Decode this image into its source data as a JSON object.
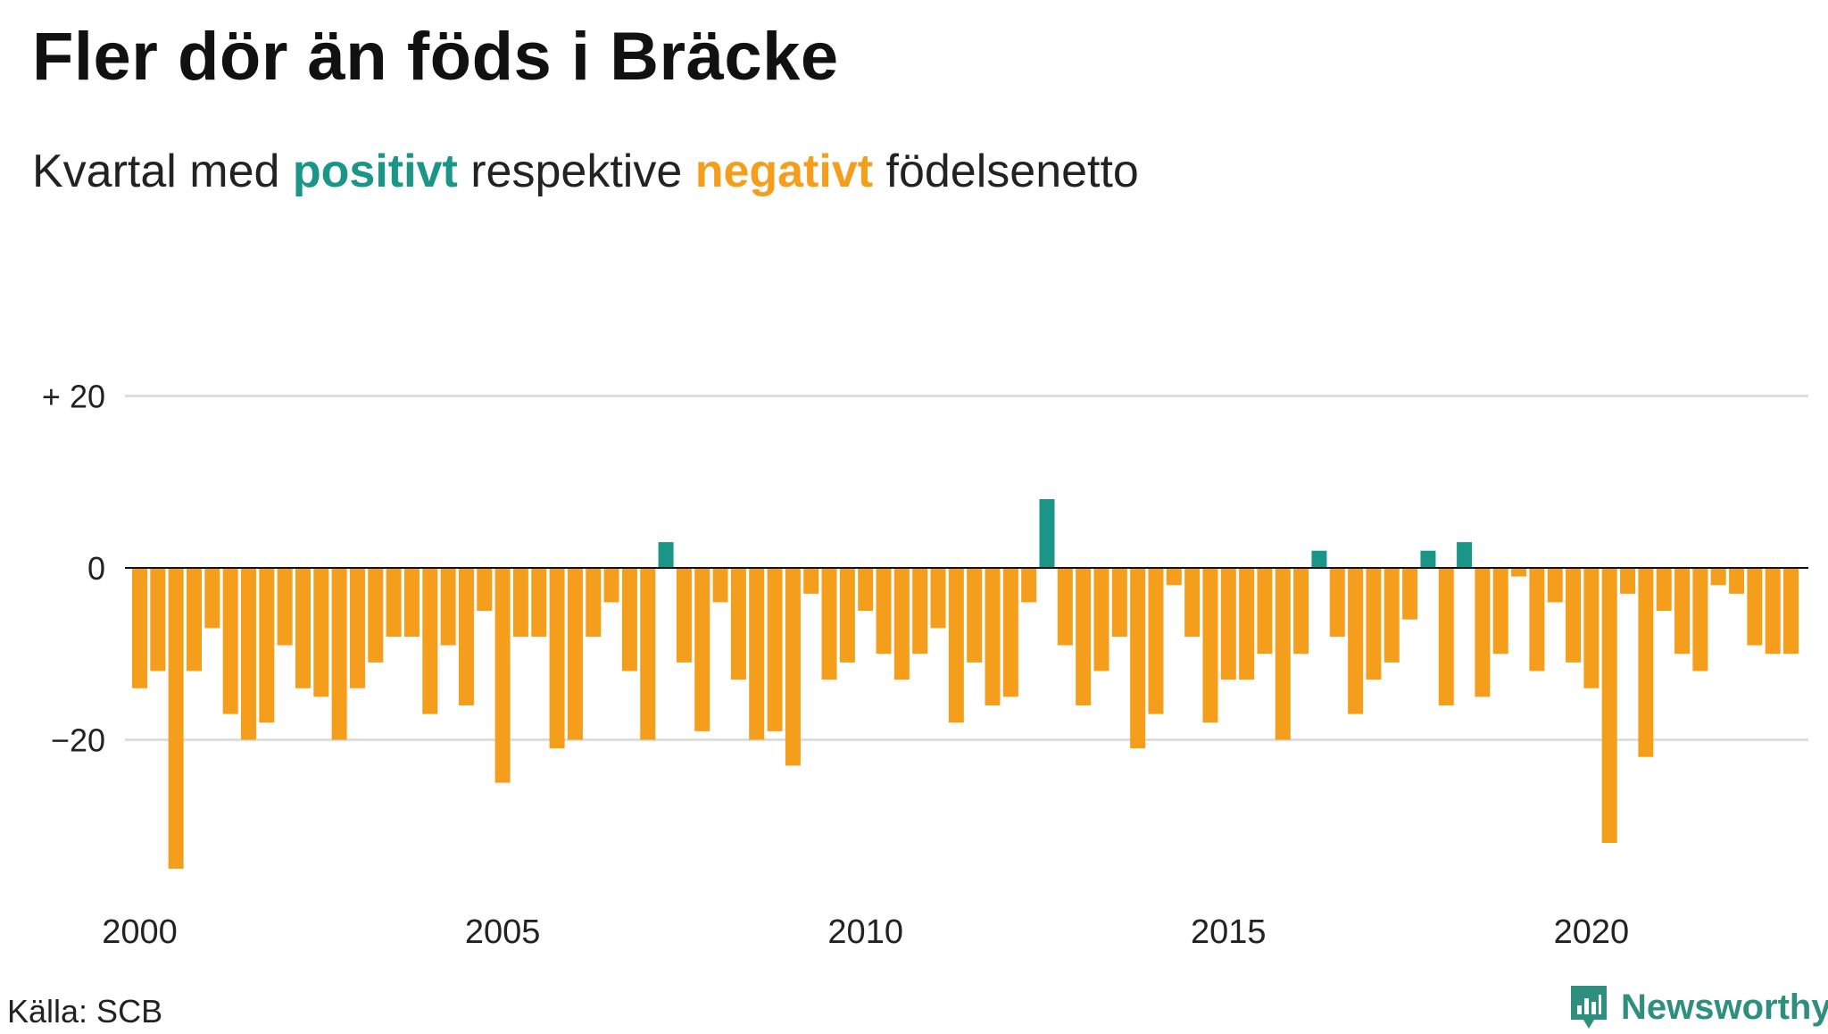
{
  "title": "Fler dör än föds i Bräcke",
  "subtitle": {
    "prefix": "Kvartal med ",
    "positive": "positivt",
    "middle": " respektive ",
    "negative": "negativt",
    "suffix": " födelsenetto"
  },
  "source": "Källa: SCB",
  "brand": "Newsworthy",
  "colors": {
    "positive": "#1a9688",
    "negative": "#f59e1c",
    "brand": "#2e8f7e",
    "grid": "#dddddd",
    "baseline": "#111111"
  },
  "chart_data": {
    "type": "bar",
    "ylim": [
      -36,
      20
    ],
    "y_ticks": [
      {
        "value": 20,
        "label": "+ 20"
      },
      {
        "value": 0,
        "label": "0"
      },
      {
        "value": -20,
        "label": "−20"
      }
    ],
    "x_ticks": [
      {
        "value": 2000,
        "label": "2000"
      },
      {
        "value": 2005,
        "label": "2005"
      },
      {
        "value": 2010,
        "label": "2010"
      },
      {
        "value": 2015,
        "label": "2015"
      },
      {
        "value": 2020,
        "label": "2020"
      }
    ],
    "start_year": 2000,
    "quarters_per_year": 4,
    "grid": true,
    "values": [
      -14,
      -12,
      -35,
      -12,
      -7,
      -17,
      -20,
      -18,
      -9,
      -14,
      -15,
      -20,
      -14,
      -11,
      -8,
      -8,
      -17,
      -9,
      -16,
      -5,
      -25,
      -8,
      -8,
      -21,
      -20,
      -8,
      -4,
      -12,
      -20,
      3,
      -11,
      -19,
      -4,
      -13,
      -20,
      -19,
      -23,
      -3,
      -13,
      -11,
      -5,
      -10,
      -13,
      -10,
      -7,
      -18,
      -11,
      -16,
      -15,
      -4,
      8,
      -9,
      -16,
      -12,
      -8,
      -21,
      -17,
      -2,
      -8,
      -18,
      -13,
      -13,
      -10,
      -20,
      -10,
      2,
      -8,
      -17,
      -13,
      -11,
      -6,
      2,
      -16,
      3,
      -15,
      -10,
      -1,
      -12,
      -4,
      -11,
      -14,
      -32,
      -3,
      -22,
      -5,
      -10,
      -12,
      -2,
      -3,
      -9,
      -10,
      -10
    ]
  }
}
